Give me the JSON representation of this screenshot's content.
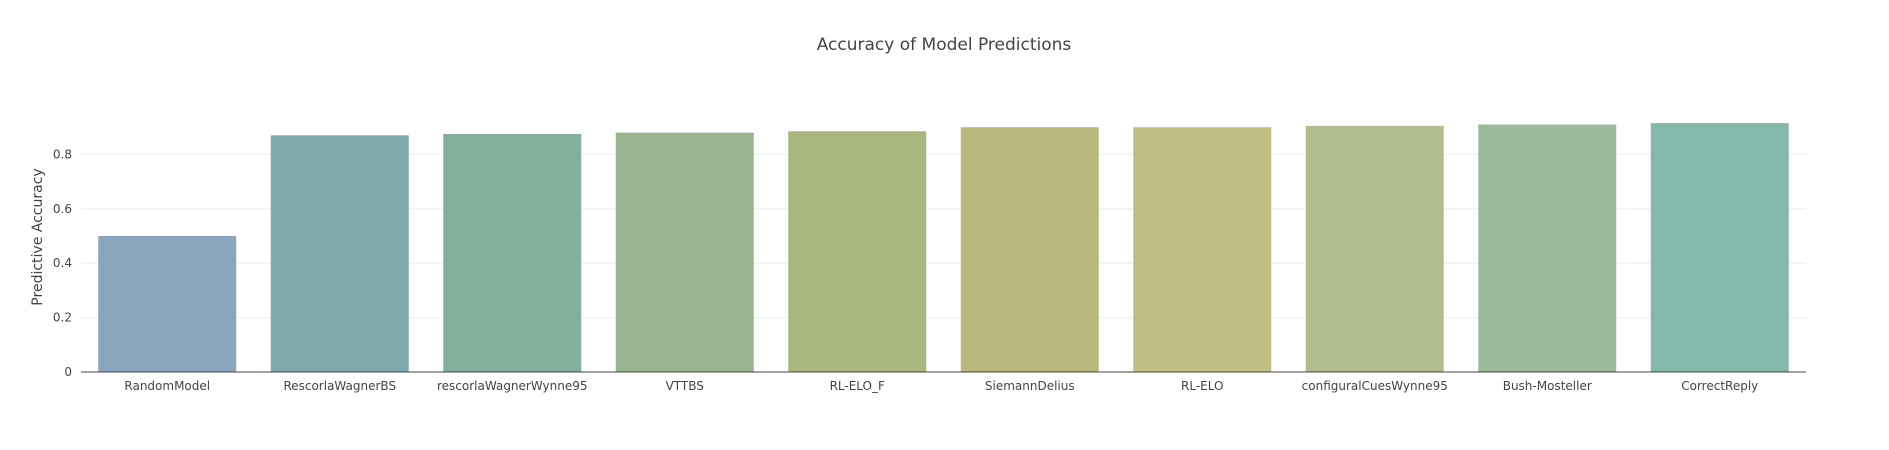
{
  "chart_data": {
    "type": "bar",
    "title": "Accuracy of Model Predictions",
    "xlabel": "",
    "ylabel": "Predictive Accuracy",
    "categories": [
      "RandomModel",
      "RescorlaWagnerBS",
      "rescorlaWagnerWynne95",
      "VTTBS",
      "RL-ELO_F",
      "SiemannDelius",
      "RL-ELO",
      "configuralCuesWynne95",
      "Bush-Mosteller",
      "CorrectReply"
    ],
    "values": [
      0.5,
      0.87,
      0.875,
      0.88,
      0.885,
      0.9,
      0.9,
      0.905,
      0.91,
      0.915
    ],
    "colors": [
      "#8aa5be",
      "#7faaad",
      "#83af9c",
      "#98b38d",
      "#a9b67e",
      "#bab97d",
      "#bfbf84",
      "#b2bd8f",
      "#9dbb9b",
      "#84b8ab"
    ],
    "ylim": [
      0,
      1.0
    ],
    "yticks": [
      0,
      0.2,
      0.4,
      0.6,
      0.8
    ],
    "ytick_labels": [
      "0",
      "0.2",
      "0.4",
      "0.6",
      "0.8"
    ],
    "grid": true,
    "legend": false
  }
}
